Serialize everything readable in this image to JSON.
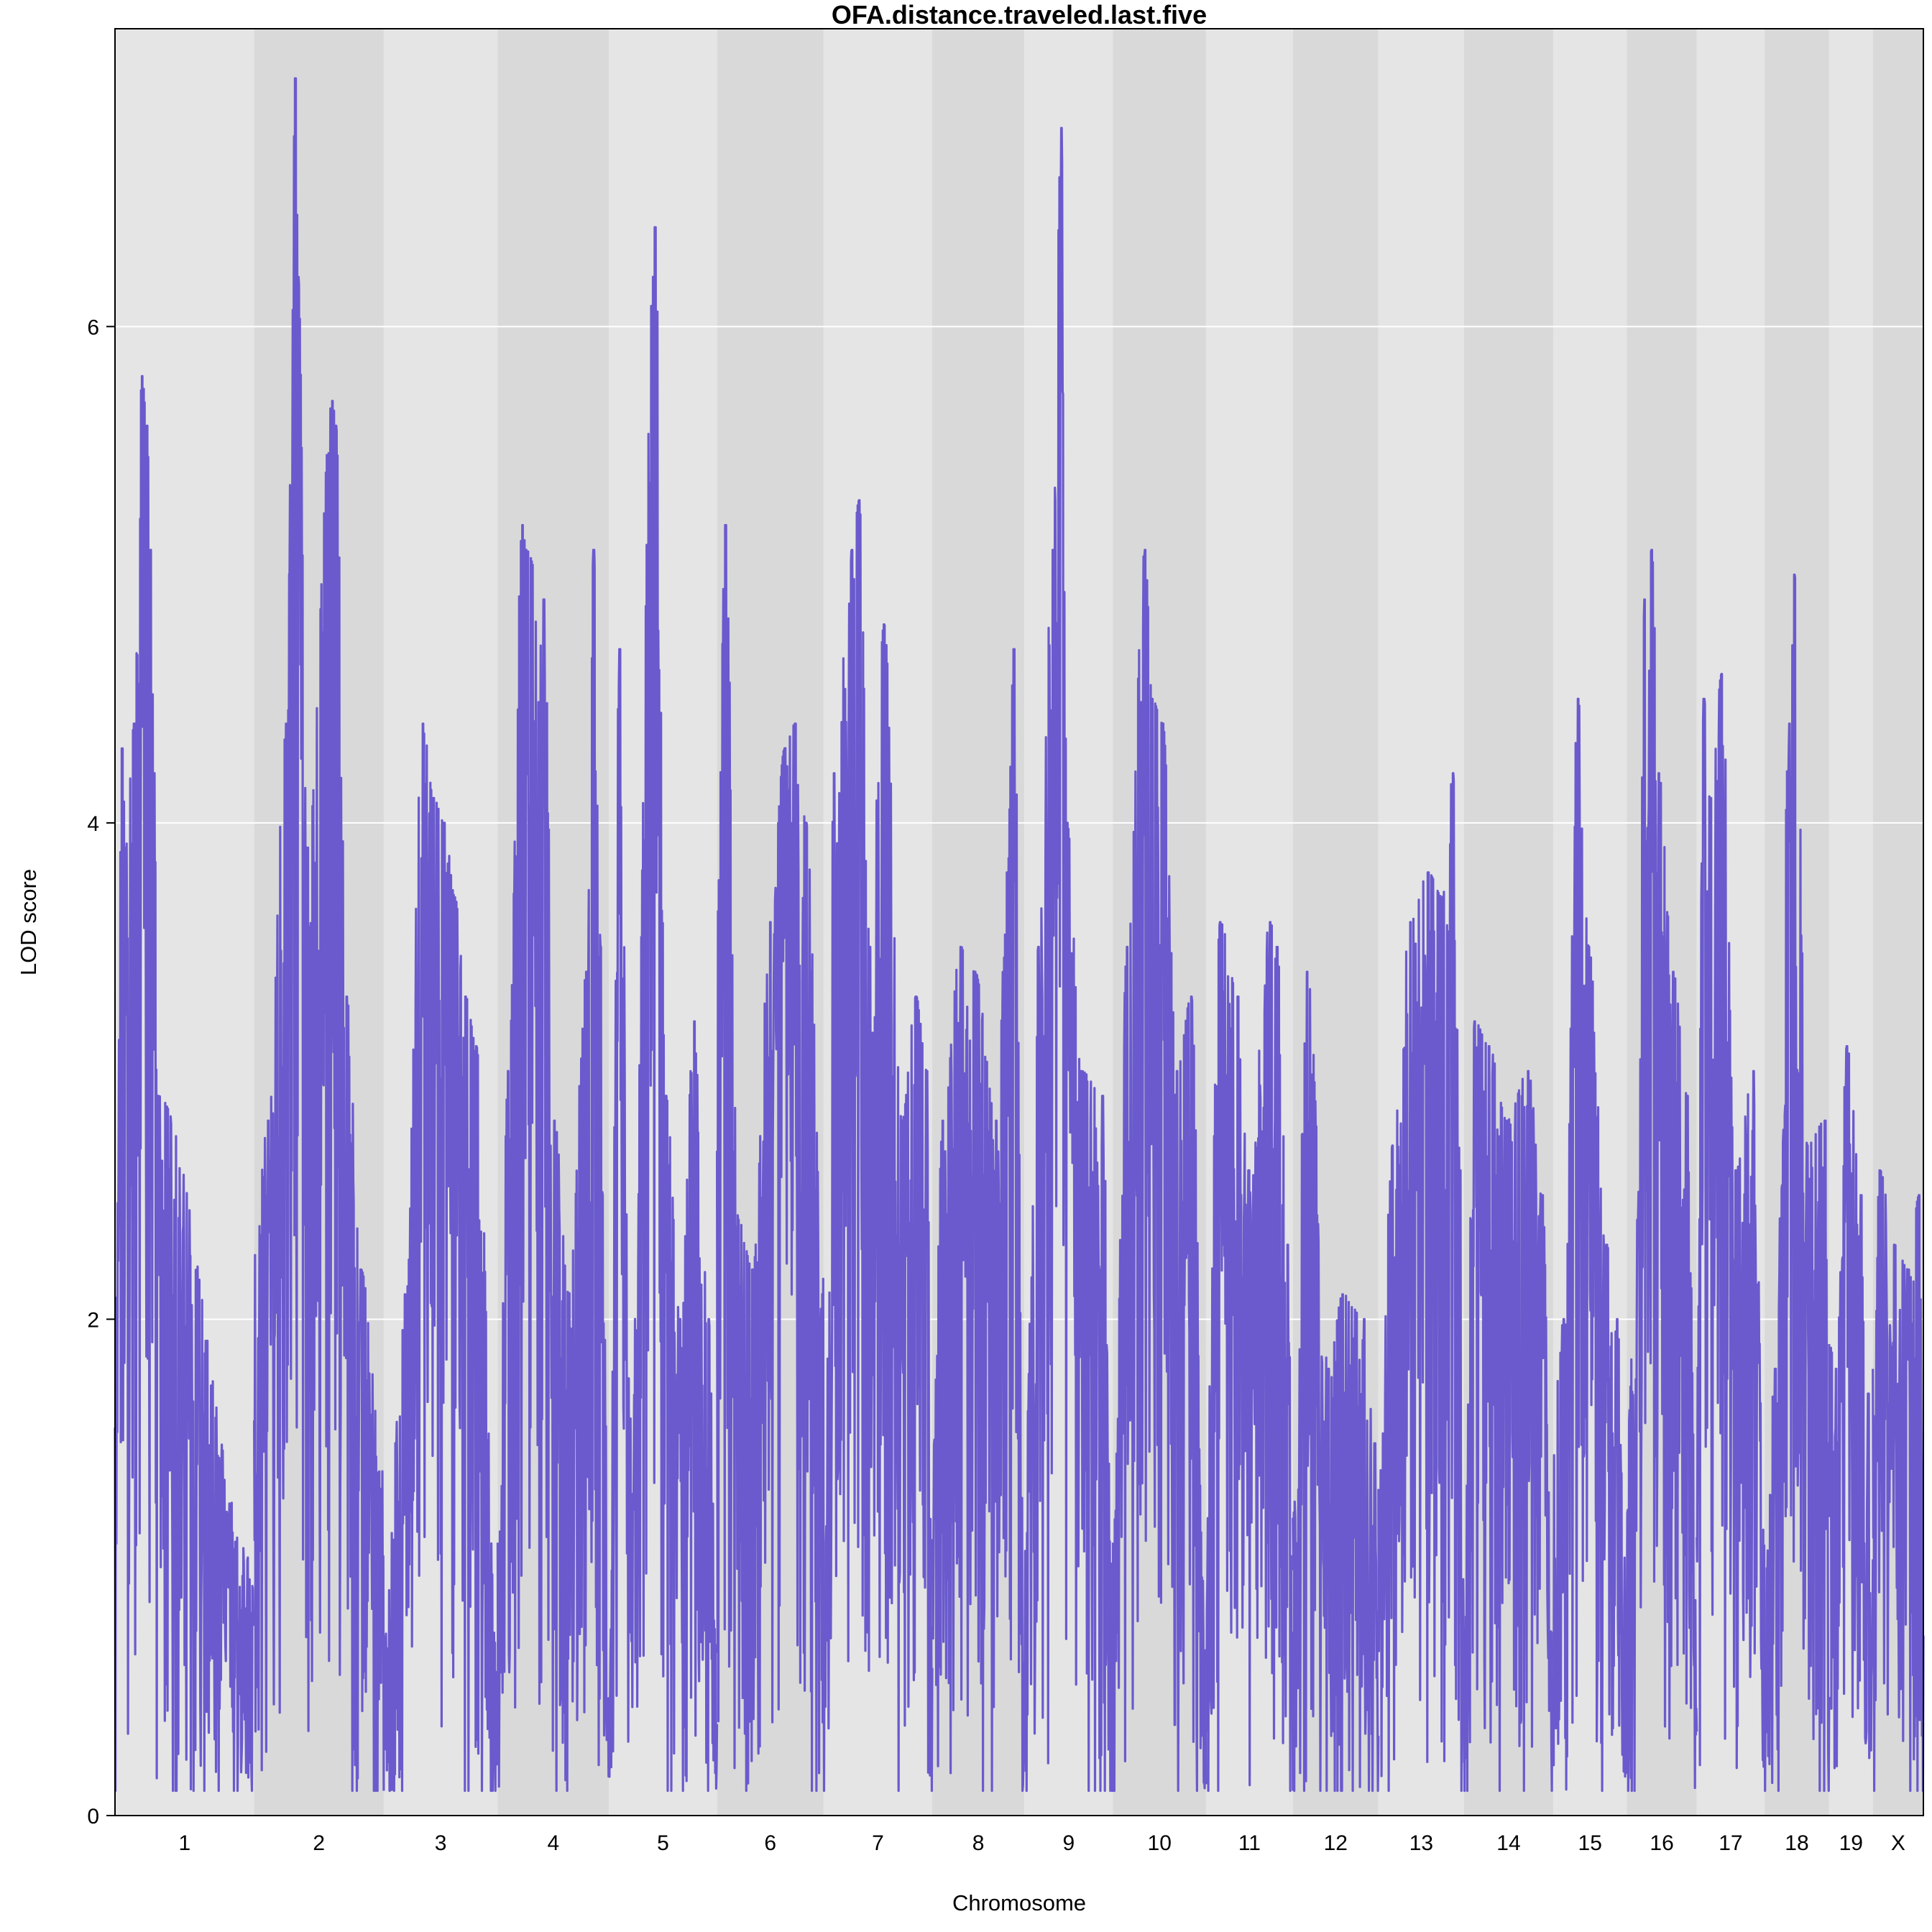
{
  "chart_data": {
    "type": "line",
    "title": "OFA.distance.traveled.last.five",
    "xlabel": "Chromosome",
    "ylabel": "LOD score",
    "ylim": [
      0,
      7.2
    ],
    "yticks": [
      0,
      2,
      4,
      6
    ],
    "grid": true,
    "line_color": "#6a5acd",
    "band_colors": [
      "#e5e5e5",
      "#d9d9d9"
    ],
    "chromosomes": [
      {
        "name": "1",
        "length": 195.5,
        "start": 1.7,
        "peaks": [
          [
            10,
            4.3
          ],
          [
            15,
            3.9
          ],
          [
            27,
            4.4
          ],
          [
            38,
            5.8
          ],
          [
            45,
            5.6
          ],
          [
            50,
            5.1
          ],
          [
            55,
            4.2
          ],
          [
            60,
            2.9
          ]
        ]
      },
      {
        "name": "2",
        "length": 182.1,
        "start": 2.3,
        "peaks": [
          [
            20,
            2.8
          ],
          [
            45,
            4.4
          ],
          [
            58,
            7.0
          ],
          [
            62,
            6.2
          ],
          [
            75,
            3.9
          ],
          [
            110,
            5.7
          ],
          [
            115,
            5.6
          ],
          [
            130,
            3.3
          ],
          [
            150,
            2.2
          ]
        ]
      },
      {
        "name": "3",
        "length": 160.0,
        "start": 0.7,
        "peaks": [
          [
            30,
            2.1
          ],
          [
            55,
            4.4
          ],
          [
            70,
            4.1
          ],
          [
            85,
            4.0
          ],
          [
            100,
            3.7
          ],
          [
            115,
            3.3
          ],
          [
            130,
            3.1
          ]
        ]
      },
      {
        "name": "4",
        "length": 156.5,
        "start": 1.1,
        "peaks": [
          [
            15,
            3.0
          ],
          [
            35,
            5.2
          ],
          [
            40,
            5.1
          ],
          [
            65,
            4.9
          ],
          [
            80,
            2.8
          ],
          [
            100,
            2.1
          ],
          [
            125,
            3.4
          ],
          [
            135,
            5.1
          ],
          [
            145,
            3.5
          ]
        ]
      },
      {
        "name": "5",
        "length": 151.8,
        "start": 0.8,
        "peaks": [
          [
            15,
            4.7
          ],
          [
            30,
            1.6
          ],
          [
            65,
            6.4
          ],
          [
            80,
            2.9
          ],
          [
            100,
            2.0
          ],
          [
            120,
            3.2
          ],
          [
            140,
            2.0
          ]
        ]
      },
      {
        "name": "6",
        "length": 149.7,
        "start": 3.6,
        "peaks": [
          [
            12,
            5.2
          ],
          [
            30,
            2.4
          ],
          [
            50,
            2.2
          ],
          [
            75,
            3.6
          ],
          [
            95,
            4.3
          ],
          [
            110,
            4.4
          ],
          [
            125,
            4.0
          ]
        ]
      },
      {
        "name": "7",
        "length": 152.6,
        "start": 1.0,
        "peaks": [
          [
            15,
            4.2
          ],
          [
            40,
            5.1
          ],
          [
            50,
            5.3
          ],
          [
            65,
            3.5
          ],
          [
            85,
            4.8
          ],
          [
            110,
            2.8
          ],
          [
            130,
            3.3
          ],
          [
            145,
            3.0
          ]
        ]
      },
      {
        "name": "8",
        "length": 129.4,
        "start": 1.4,
        "peaks": [
          [
            15,
            2.8
          ],
          [
            40,
            3.5
          ],
          [
            60,
            3.4
          ],
          [
            90,
            2.8
          ],
          [
            105,
            3.8
          ],
          [
            115,
            4.7
          ]
        ]
      },
      {
        "name": "9",
        "length": 124.6,
        "start": 1.3,
        "peaks": [
          [
            20,
            3.5
          ],
          [
            40,
            5.1
          ],
          [
            52,
            6.8
          ],
          [
            60,
            4.0
          ],
          [
            80,
            3.0
          ],
          [
            110,
            2.9
          ]
        ]
      },
      {
        "name": "10",
        "length": 130.7,
        "start": 1.1,
        "peaks": [
          [
            20,
            3.5
          ],
          [
            45,
            5.1
          ],
          [
            55,
            4.5
          ],
          [
            70,
            4.4
          ],
          [
            90,
            3.0
          ],
          [
            110,
            3.3
          ]
        ]
      },
      {
        "name": "11",
        "length": 122.1,
        "start": 1.4,
        "peaks": [
          [
            20,
            3.6
          ],
          [
            45,
            3.3
          ],
          [
            60,
            2.6
          ],
          [
            90,
            3.6
          ],
          [
            100,
            3.5
          ],
          [
            115,
            2.3
          ]
        ]
      },
      {
        "name": "12",
        "length": 120.1,
        "start": 1.2,
        "peaks": [
          [
            20,
            3.4
          ],
          [
            50,
            1.8
          ],
          [
            70,
            2.1
          ],
          [
            100,
            2.0
          ],
          [
            115,
            1.5
          ]
        ]
      },
      {
        "name": "13",
        "length": 120.4,
        "start": 1.4,
        "peaks": [
          [
            20,
            2.7
          ],
          [
            45,
            3.6
          ],
          [
            70,
            3.8
          ],
          [
            90,
            3.7
          ],
          [
            105,
            4.2
          ],
          [
            115,
            2.6
          ]
        ]
      },
      {
        "name": "14",
        "length": 125.2,
        "start": 1.0,
        "peaks": [
          [
            15,
            3.2
          ],
          [
            35,
            3.1
          ],
          [
            60,
            2.8
          ],
          [
            90,
            3.0
          ],
          [
            110,
            2.5
          ]
        ]
      },
      {
        "name": "15",
        "length": 103.5,
        "start": 1.6,
        "peaks": [
          [
            15,
            2.0
          ],
          [
            35,
            4.5
          ],
          [
            50,
            3.5
          ],
          [
            75,
            2.3
          ],
          [
            90,
            2.0
          ]
        ]
      },
      {
        "name": "16",
        "length": 98.2,
        "start": 1.5,
        "peaks": [
          [
            15,
            2.4
          ],
          [
            25,
            4.9
          ],
          [
            35,
            5.1
          ],
          [
            45,
            4.2
          ],
          [
            65,
            3.4
          ],
          [
            85,
            2.9
          ]
        ]
      },
      {
        "name": "17",
        "length": 95.3,
        "start": 1.8,
        "peaks": [
          [
            10,
            4.5
          ],
          [
            20,
            4.1
          ],
          [
            35,
            4.6
          ],
          [
            55,
            2.6
          ],
          [
            80,
            3.0
          ]
        ]
      },
      {
        "name": "18",
        "length": 90.7,
        "start": 1.0,
        "peaks": [
          [
            15,
            1.8
          ],
          [
            35,
            4.4
          ],
          [
            42,
            5.0
          ],
          [
            60,
            2.7
          ],
          [
            85,
            2.8
          ]
        ]
      },
      {
        "name": "19",
        "length": 61.4,
        "start": 1.9,
        "peaks": [
          [
            10,
            1.8
          ],
          [
            25,
            3.1
          ],
          [
            45,
            2.5
          ],
          [
            55,
            1.7
          ]
        ]
      },
      {
        "name": "X",
        "length": 71.0,
        "start": 1.8,
        "peaks": [
          [
            10,
            2.6
          ],
          [
            30,
            2.3
          ],
          [
            50,
            2.2
          ],
          [
            65,
            2.5
          ]
        ]
      }
    ]
  }
}
